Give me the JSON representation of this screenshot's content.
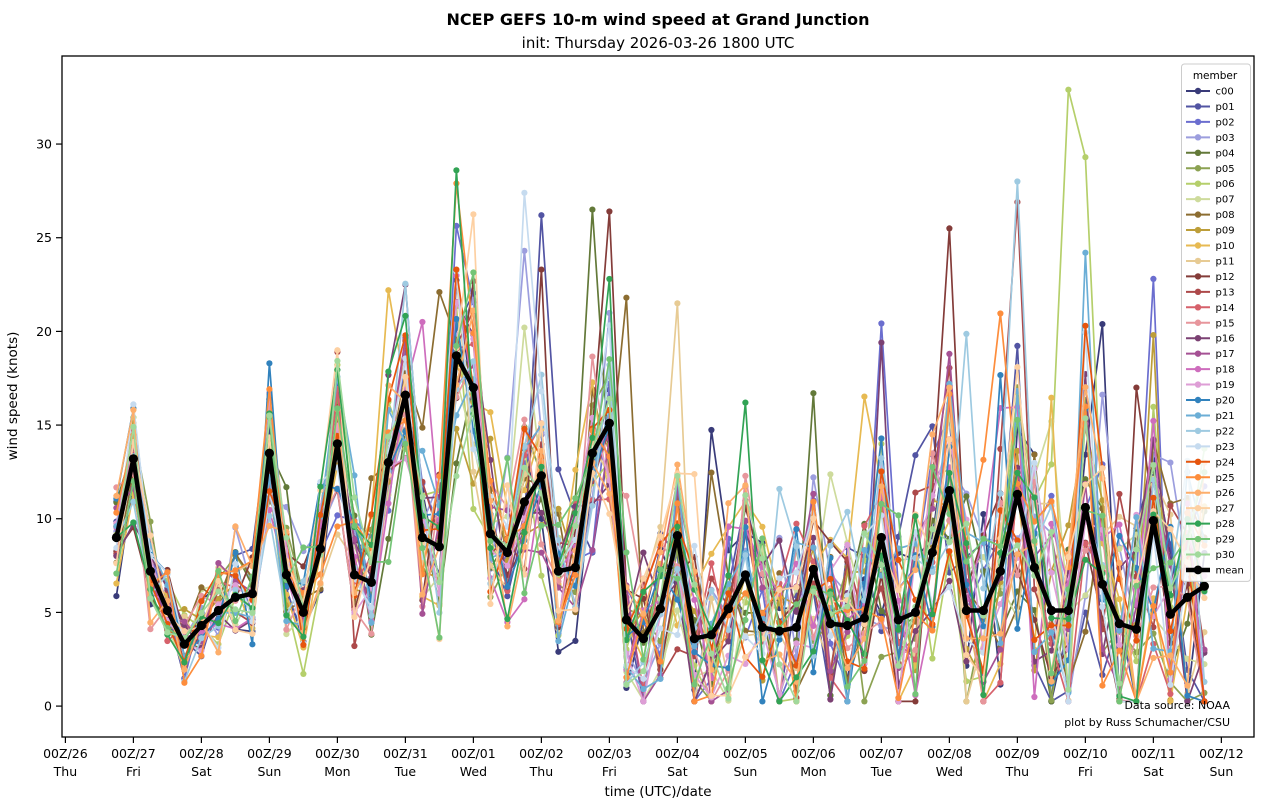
{
  "title": "NCEP GEFS 10-m wind speed at Grand Junction",
  "subtitle": "init: Thursday 2026-03-26 1800 UTC",
  "annotation": {
    "line1": "Data source: NOAA",
    "line2": "plot by Russ Schumacher/CSU"
  },
  "chart_data": {
    "type": "line",
    "title": "NCEP GEFS 10-m wind speed at Grand Junction",
    "subtitle": "init: Thursday 2026-03-26 1800 UTC",
    "xlabel": "time (UTC)/date",
    "ylabel": "wind speed (knots)",
    "legend_title": "member",
    "legend_position": "upper right",
    "grid": false,
    "start_time": "2026-03-26 18:00 UTC",
    "time_step_hours": 6,
    "n_points": 65,
    "n_members": 31,
    "ylim": [
      -1.65,
      34.7
    ],
    "xlim_days_from_00z26": [
      -0.05,
      17.48
    ],
    "y_ticks": [
      0,
      5,
      10,
      15,
      20,
      25,
      30
    ],
    "x_ticks": [
      {
        "utc": "00Z/26",
        "day": "Thu"
      },
      {
        "utc": "00Z/27",
        "day": "Fri"
      },
      {
        "utc": "00Z/28",
        "day": "Sat"
      },
      {
        "utc": "00Z/29",
        "day": "Sun"
      },
      {
        "utc": "00Z/30",
        "day": "Mon"
      },
      {
        "utc": "00Z/31",
        "day": "Tue"
      },
      {
        "utc": "00Z/01",
        "day": "Wed"
      },
      {
        "utc": "00Z/02",
        "day": "Thu"
      },
      {
        "utc": "00Z/03",
        "day": "Fri"
      },
      {
        "utc": "00Z/04",
        "day": "Sat"
      },
      {
        "utc": "00Z/05",
        "day": "Sun"
      },
      {
        "utc": "00Z/06",
        "day": "Mon"
      },
      {
        "utc": "00Z/07",
        "day": "Tue"
      },
      {
        "utc": "00Z/08",
        "day": "Wed"
      },
      {
        "utc": "00Z/09",
        "day": "Thu"
      },
      {
        "utc": "00Z/10",
        "day": "Fri"
      },
      {
        "utc": "00Z/11",
        "day": "Sat"
      },
      {
        "utc": "00Z/12",
        "day": "Sun"
      }
    ],
    "first_point_day_offset": 0.75,
    "mean_series": {
      "name": "mean",
      "color": "#000000",
      "values": [
        9.0,
        13.2,
        7.2,
        5.1,
        3.3,
        4.3,
        5.1,
        5.8,
        6.0,
        13.5,
        7.0,
        5.0,
        8.4,
        14.0,
        7.0,
        6.6,
        13.0,
        16.6,
        9.0,
        8.5,
        18.7,
        17.0,
        9.2,
        8.2,
        10.9,
        12.3,
        7.2,
        7.4,
        13.5,
        15.1,
        4.6,
        3.6,
        5.2,
        9.1,
        3.6,
        3.8,
        5.2,
        7.0,
        4.2,
        4.0,
        4.2,
        7.3,
        4.4,
        4.3,
        4.7,
        9.0,
        4.6,
        5.0,
        8.2,
        11.5,
        5.1,
        5.1,
        7.2,
        11.3,
        7.4,
        5.1,
        5.1,
        10.6,
        6.5,
        4.4,
        4.1,
        9.9,
        4.9,
        5.8,
        6.4
      ]
    },
    "members": [
      {
        "name": "c00",
        "color": "#393b79"
      },
      {
        "name": "p01",
        "color": "#5254a3"
      },
      {
        "name": "p02",
        "color": "#6b6ecf"
      },
      {
        "name": "p03",
        "color": "#9c9ede"
      },
      {
        "name": "p04",
        "color": "#637939"
      },
      {
        "name": "p05",
        "color": "#8ca252"
      },
      {
        "name": "p06",
        "color": "#b5cf6b"
      },
      {
        "name": "p07",
        "color": "#cedb9c"
      },
      {
        "name": "p08",
        "color": "#8c6d31"
      },
      {
        "name": "p09",
        "color": "#bd9e39"
      },
      {
        "name": "p10",
        "color": "#e7ba52"
      },
      {
        "name": "p11",
        "color": "#e7cb94"
      },
      {
        "name": "p12",
        "color": "#843c39"
      },
      {
        "name": "p13",
        "color": "#ad494a"
      },
      {
        "name": "p14",
        "color": "#d6616b"
      },
      {
        "name": "p15",
        "color": "#e7969c"
      },
      {
        "name": "p16",
        "color": "#7b4173"
      },
      {
        "name": "p17",
        "color": "#a55194"
      },
      {
        "name": "p18",
        "color": "#ce6dbd"
      },
      {
        "name": "p19",
        "color": "#de9ed6"
      },
      {
        "name": "p20",
        "color": "#3182bd"
      },
      {
        "name": "p21",
        "color": "#6baed6"
      },
      {
        "name": "p22",
        "color": "#9ecae1"
      },
      {
        "name": "p23",
        "color": "#c6dbef"
      },
      {
        "name": "p24",
        "color": "#e6550d"
      },
      {
        "name": "p25",
        "color": "#fd8d3c"
      },
      {
        "name": "p26",
        "color": "#fdae6b"
      },
      {
        "name": "p27",
        "color": "#fdd0a2"
      },
      {
        "name": "p28",
        "color": "#31a354"
      },
      {
        "name": "p29",
        "color": "#74c476"
      },
      {
        "name": "p30",
        "color": "#a1d99b"
      }
    ],
    "member_spread_model": {
      "comment": "individual ensemble traces spread about the mean; spread grows with lead time",
      "base": 1.3,
      "growth": 5.3,
      "exponent": 0.85,
      "mean_coupling": 0.22,
      "spike_threshold": 0.86,
      "spike_gain": 1.7,
      "clamp": [
        0.25,
        33.2
      ]
    },
    "notable_member_peaks": [
      [
        "p20",
        1,
        15.9
      ],
      [
        "p06",
        9,
        16.4
      ],
      [
        "p13",
        13,
        18.9
      ],
      [
        "p10",
        16,
        22.2
      ],
      [
        "p16",
        17,
        22.5
      ],
      [
        "p18",
        18,
        20.5
      ],
      [
        "p08",
        19,
        22.1
      ],
      [
        "p28",
        20,
        28.6
      ],
      [
        "p25",
        20,
        27.9
      ],
      [
        "p24",
        20,
        23.3
      ],
      [
        "p23",
        24,
        27.4
      ],
      [
        "p03",
        24,
        24.3
      ],
      [
        "p01",
        25,
        26.2
      ],
      [
        "p12",
        25,
        23.3
      ],
      [
        "p04",
        28,
        26.5
      ],
      [
        "p12",
        29,
        26.4
      ],
      [
        "p08",
        30,
        21.8
      ],
      [
        "p11",
        33,
        21.5
      ],
      [
        "p28",
        37,
        16.2
      ],
      [
        "p04",
        41,
        16.7
      ],
      [
        "p16",
        45,
        19.4
      ],
      [
        "p12",
        49,
        25.5
      ],
      [
        "p17",
        49,
        18.8
      ],
      [
        "p22",
        53,
        28.0
      ],
      [
        "p13",
        53,
        26.9
      ],
      [
        "p06",
        55,
        12.9
      ],
      [
        "p06",
        56,
        32.9
      ],
      [
        "p06",
        57,
        29.3
      ],
      [
        "p21",
        57,
        24.2
      ],
      [
        "p24",
        57,
        20.3
      ],
      [
        "p06",
        58,
        9.7
      ],
      [
        "p12",
        60,
        17.0
      ],
      [
        "p02",
        61,
        22.8
      ],
      [
        "p09",
        61,
        19.8
      ]
    ]
  }
}
